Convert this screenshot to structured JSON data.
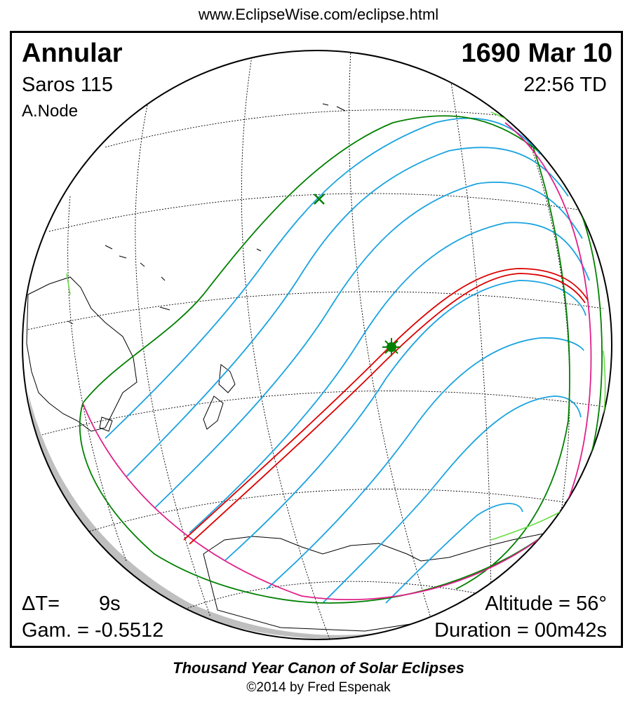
{
  "header": {
    "url": "www.EclipseWise.com/eclipse.html"
  },
  "eclipse": {
    "type": "Annular",
    "saros": "Saros 115",
    "node": "A.Node",
    "date": "1690 Mar 10",
    "time": "22:56 TD",
    "delta_t_label": "ΔT=",
    "delta_t_value": "9s",
    "gamma": "Gam. = -0.5512",
    "altitude": "Altitude = 56°",
    "duration": "Duration = 00m42s"
  },
  "footer": {
    "canon": "Thousand Year Canon of Solar Eclipses",
    "copyright": "©2014 by Fred Espenak"
  },
  "colors": {
    "umbral_path": "#dd0000",
    "penumbral_limits": "#008000",
    "hourly_lines": "#1aa3e0",
    "rise_set_curves": "#e0208a",
    "night_shade": "#bfbfbf",
    "sunrise_sunset_green": "#66dd44"
  },
  "markers": {
    "greatest_eclipse_icon": "asterisk-icon",
    "greatest_duration_icon": "x-mark-icon"
  }
}
